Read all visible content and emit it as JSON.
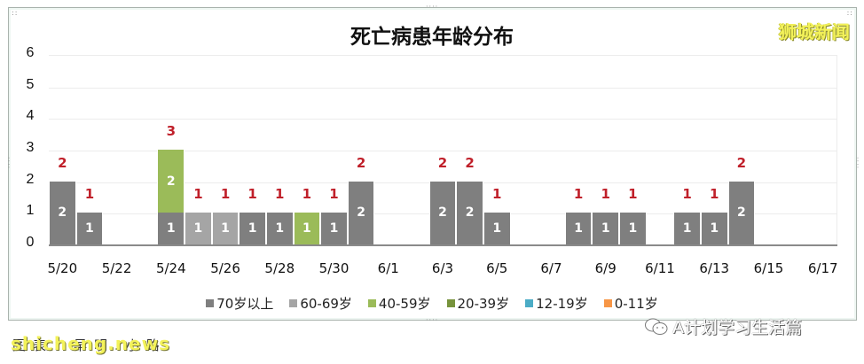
{
  "chart_data": {
    "type": "bar",
    "stacked": true,
    "title": "死亡病患年龄分布",
    "xlabel": "",
    "ylabel": "",
    "ylim": [
      0,
      6
    ],
    "yticks": [
      "0",
      "1",
      "2",
      "3",
      "4",
      "5",
      "6"
    ],
    "grid": true,
    "legend_position": "bottom",
    "categories": [
      "5/20",
      "5/21",
      "5/22",
      "5/23",
      "5/24",
      "5/25",
      "5/26",
      "5/27",
      "5/28",
      "5/29",
      "5/30",
      "5/31",
      "6/1",
      "6/2",
      "6/3",
      "6/4",
      "6/5",
      "6/6",
      "6/7",
      "6/8",
      "6/9",
      "6/10",
      "6/11",
      "6/12",
      "6/13",
      "6/14",
      "6/15",
      "6/16",
      "6/17"
    ],
    "xtick_labels": [
      "5/20",
      "5/22",
      "5/24",
      "5/26",
      "5/28",
      "5/30",
      "6/1",
      "6/3",
      "6/5",
      "6/7",
      "6/9",
      "6/11",
      "6/13",
      "6/15",
      "6/17"
    ],
    "series": [
      {
        "name": "70岁以上",
        "color": "#7f7f7f",
        "values": [
          2,
          1,
          0,
          0,
          1,
          0,
          0,
          1,
          1,
          0,
          1,
          2,
          0,
          0,
          2,
          2,
          1,
          0,
          0,
          1,
          1,
          1,
          0,
          1,
          1,
          2,
          0,
          0,
          0
        ]
      },
      {
        "name": "60-69岁",
        "color": "#a5a5a5",
        "values": [
          0,
          0,
          0,
          0,
          0,
          1,
          1,
          0,
          0,
          0,
          0,
          0,
          0,
          0,
          0,
          0,
          0,
          0,
          0,
          0,
          0,
          0,
          0,
          0,
          0,
          0,
          0,
          0,
          0
        ]
      },
      {
        "name": "40-59岁",
        "color": "#9bbb59",
        "values": [
          0,
          0,
          0,
          0,
          2,
          0,
          0,
          0,
          0,
          1,
          0,
          0,
          0,
          0,
          0,
          0,
          0,
          0,
          0,
          0,
          0,
          0,
          0,
          0,
          0,
          0,
          0,
          0,
          0
        ]
      },
      {
        "name": "20-39岁",
        "color": "#77933c",
        "values": [
          0,
          0,
          0,
          0,
          0,
          0,
          0,
          0,
          0,
          0,
          0,
          0,
          0,
          0,
          0,
          0,
          0,
          0,
          0,
          0,
          0,
          0,
          0,
          0,
          0,
          0,
          0,
          0,
          0
        ]
      },
      {
        "name": "12-19岁",
        "color": "#4bacc6",
        "values": [
          0,
          0,
          0,
          0,
          0,
          0,
          0,
          0,
          0,
          0,
          0,
          0,
          0,
          0,
          0,
          0,
          0,
          0,
          0,
          0,
          0,
          0,
          0,
          0,
          0,
          0,
          0,
          0,
          0
        ]
      },
      {
        "name": "0-11岁",
        "color": "#f79646",
        "values": [
          0,
          0,
          0,
          0,
          0,
          0,
          0,
          0,
          0,
          0,
          0,
          0,
          0,
          0,
          0,
          0,
          0,
          0,
          0,
          0,
          0,
          0,
          0,
          0,
          0,
          0,
          0,
          0,
          0
        ]
      }
    ],
    "totals": [
      2,
      1,
      0,
      0,
      3,
      1,
      1,
      1,
      1,
      1,
      1,
      2,
      0,
      0,
      2,
      2,
      1,
      0,
      0,
      1,
      1,
      1,
      0,
      1,
      1,
      2,
      0,
      0,
      0
    ],
    "total_label_color": "#c0202a"
  },
  "watermarks": {
    "top_right": "狮城新闻",
    "bottom_left": "shicheng.news",
    "bottom_left_under": "图表：早明.小路",
    "bottom_right": "A计划学习生活篇"
  }
}
